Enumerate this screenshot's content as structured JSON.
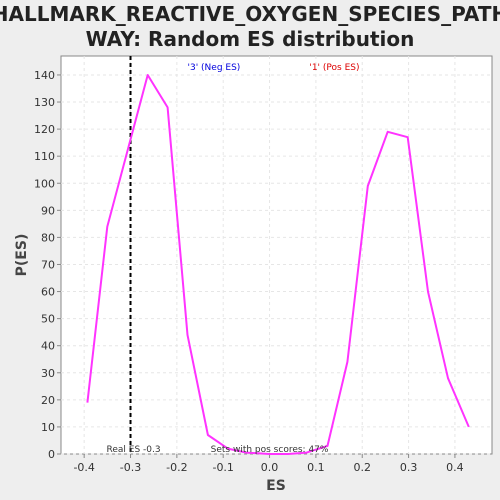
{
  "chart_data": {
    "type": "line",
    "title_line1": "HALLMARK_REACTIVE_OXYGEN_SPECIES_PATH",
    "title_line2": "WAY: Random ES distribution",
    "xlabel": "ES",
    "ylabel": "P(ES)",
    "xlim": [
      -0.45,
      0.48
    ],
    "ylim": [
      0,
      147
    ],
    "xticks": [
      -0.4,
      -0.3,
      -0.2,
      -0.1,
      0.0,
      0.1,
      0.2,
      0.3,
      0.4
    ],
    "xtick_labels": [
      "-0.4",
      "-0.3",
      "-0.2",
      "-0.1",
      "0.0",
      "0.1",
      "0.2",
      "0.3",
      "0.4"
    ],
    "yticks": [
      0,
      10,
      20,
      30,
      40,
      50,
      60,
      70,
      80,
      90,
      100,
      110,
      120,
      130,
      140
    ],
    "grid": true,
    "series": [
      {
        "color": "#ff33ff",
        "x": [
          -0.393,
          -0.35,
          -0.263,
          -0.22,
          -0.177,
          -0.133,
          -0.09,
          -0.05,
          0.0,
          0.04,
          0.08,
          0.125,
          0.168,
          0.212,
          0.255,
          0.298,
          0.342,
          0.385,
          0.43
        ],
        "y": [
          19,
          84,
          140,
          128,
          44,
          7,
          2,
          0.5,
          0,
          0,
          0.5,
          3,
          34,
          99,
          119,
          117,
          60,
          28,
          10
        ]
      }
    ],
    "legend": [
      {
        "label": "'3' (Neg ES)",
        "color": "#0000dd"
      },
      {
        "label": "'1' (Pos ES)",
        "color": "#dd0000"
      }
    ],
    "real_es": {
      "value": -0.3,
      "label": "Real ES -0.3"
    },
    "annotation": "Sets with pos scores: 47%"
  }
}
